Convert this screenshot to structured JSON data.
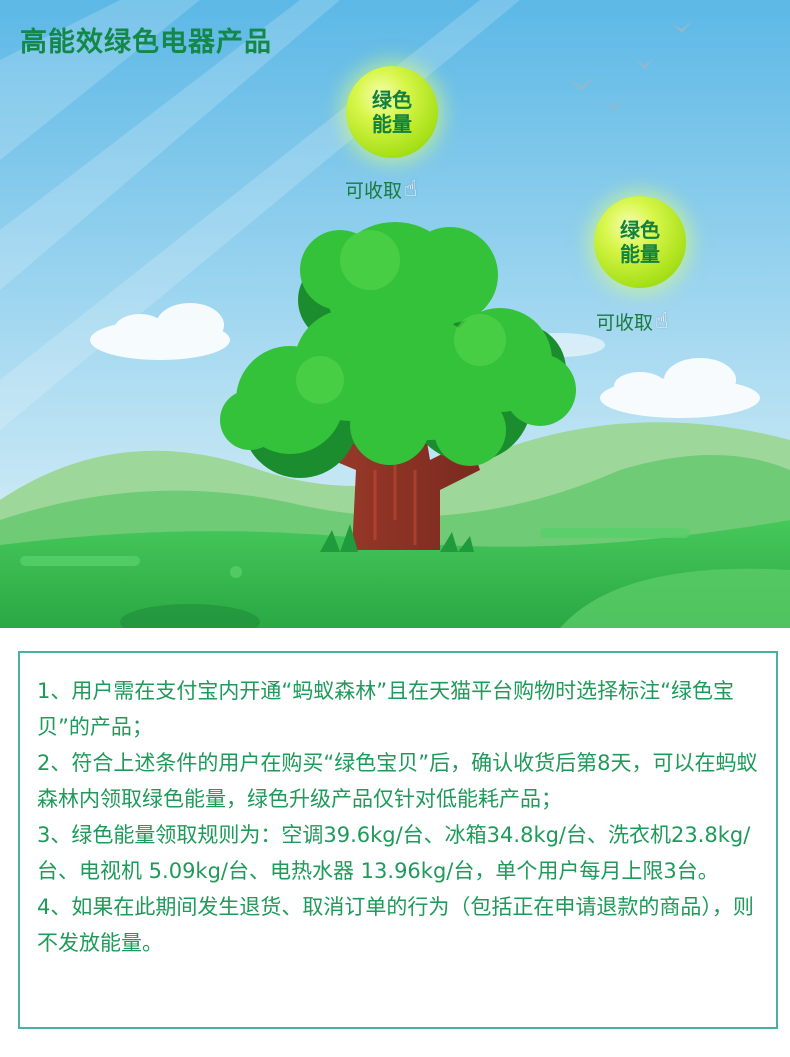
{
  "page": {
    "title": "高能效绿色电器产品"
  },
  "energy_balls": [
    {
      "label": "绿色能量",
      "collect_text": "可收取",
      "hand_icon": "pointing-hand-icon"
    },
    {
      "label": "绿色能量",
      "collect_text": "可收取",
      "hand_icon": "pointing-hand-icon"
    }
  ],
  "rules": [
    "1、用户需在支付宝内开通“蚂蚁森林”且在天猫平台购物时选择标注“绿色宝贝”的产品；",
    "2、符合上述条件的用户在购买“绿色宝贝”后，确认收货后第8天，可以在蚂蚁森林内领取绿色能量，绿色升级产品仅针对低能耗产品；",
    "3、绿色能量领取规则为：空调39.6kg/台、冰箱34.8kg/台、洗衣机23.8kg/台、电视机 5.09kg/台、电热水器 13.96kg/台，单个用户每月上限3台。",
    "4、如果在此期间发生退货、取消订单的行为（包括正在申请退款的商品），则不发放能量。"
  ],
  "colors": {
    "title_green": "#13884a",
    "rule_text": "#1f9a5a",
    "box_border": "#4ab0a6",
    "sky_top": "#64bde8",
    "sky_bottom": "#d4eef7"
  }
}
